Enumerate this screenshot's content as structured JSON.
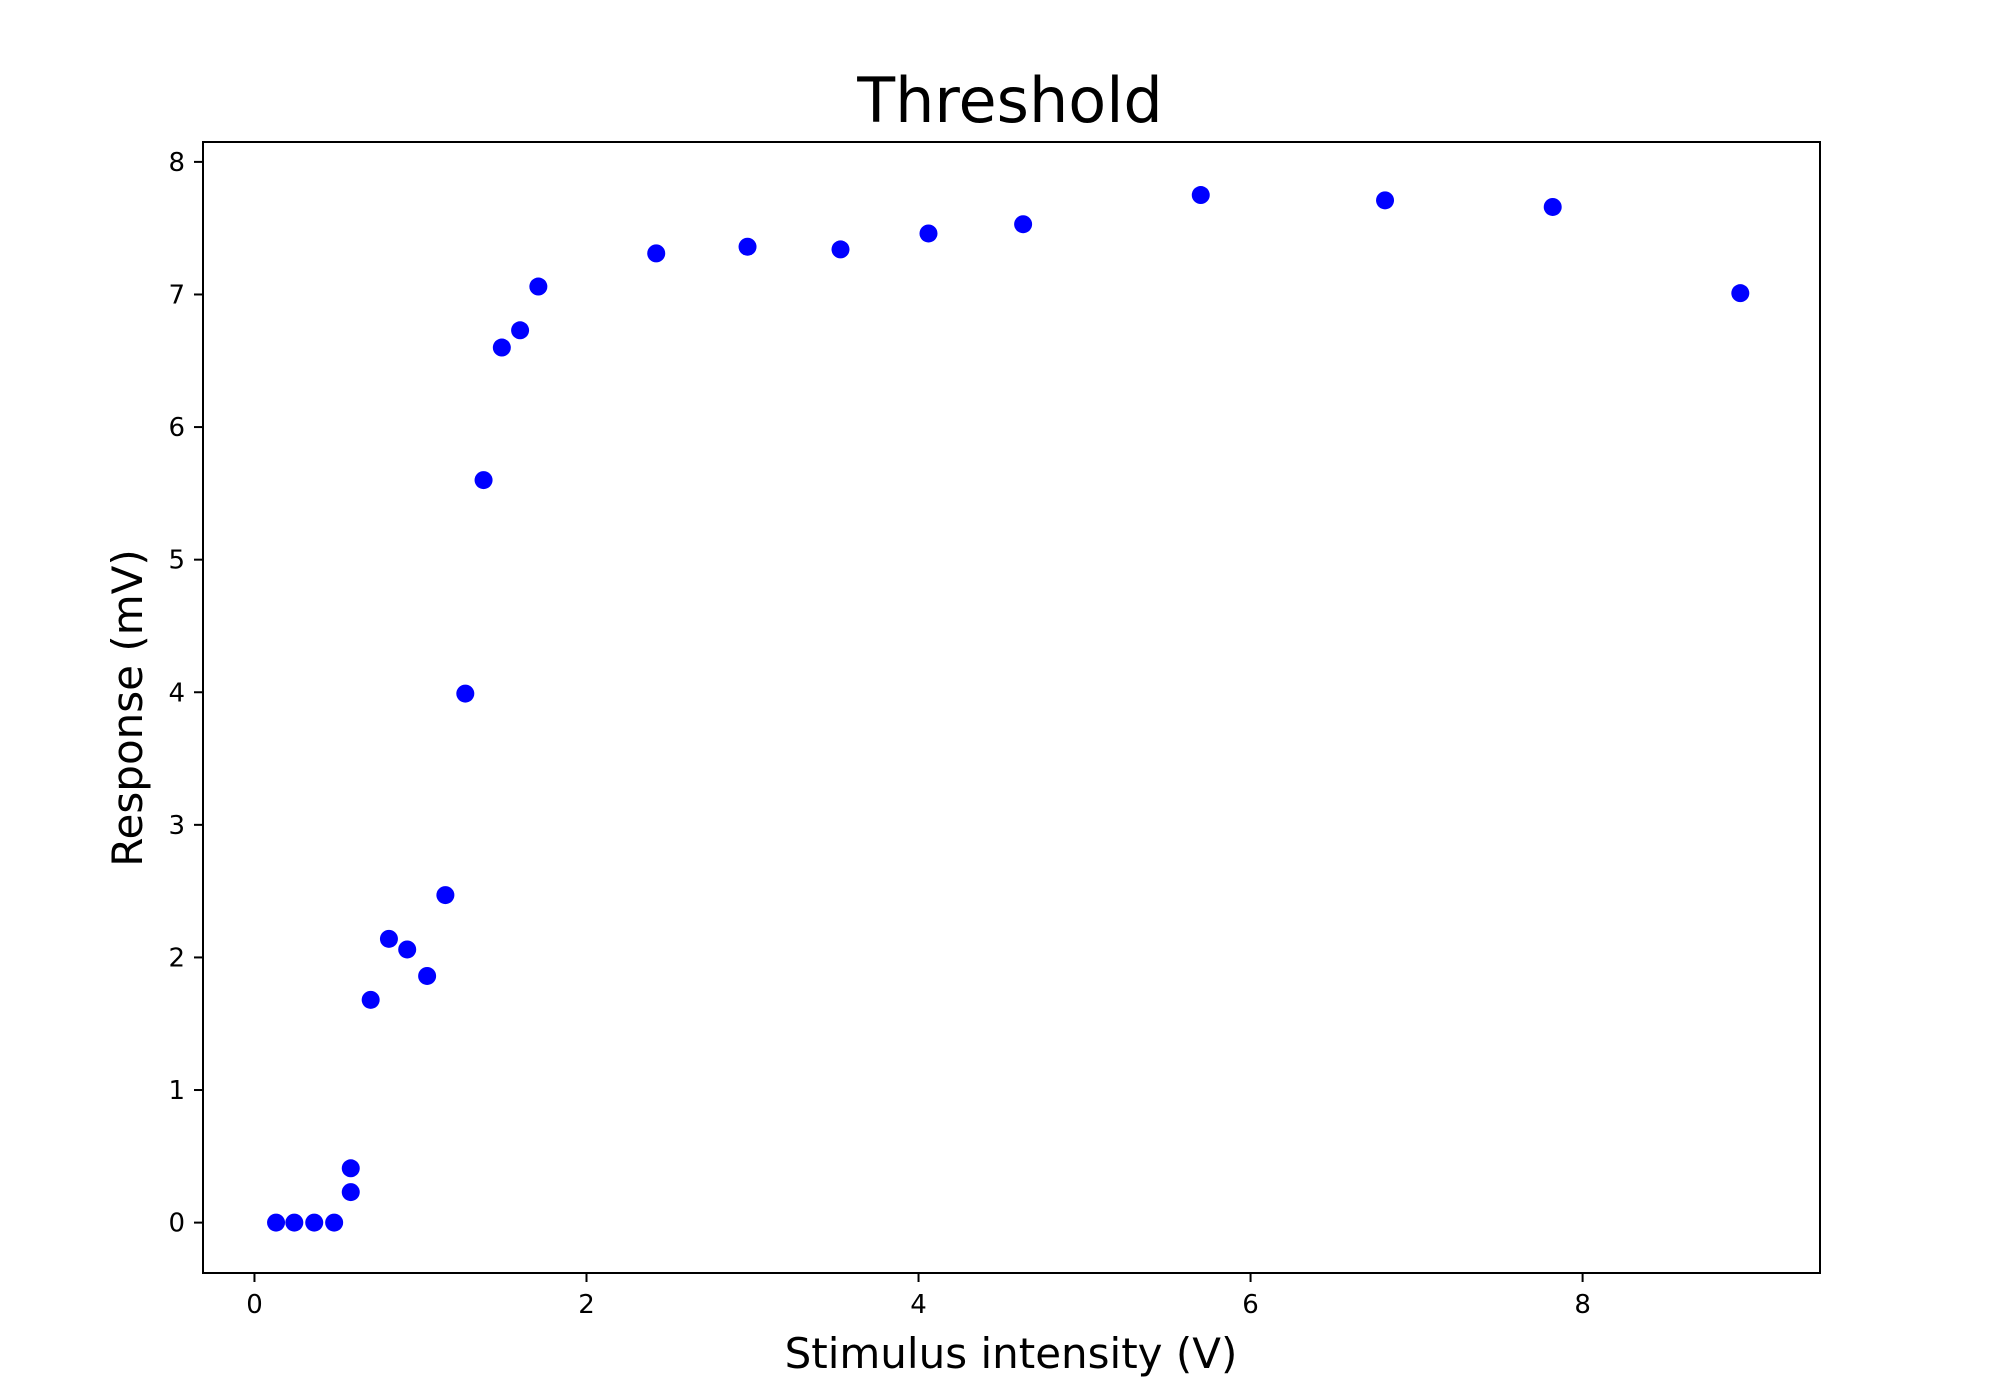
{
  "chart_data": {
    "type": "scatter",
    "title": "Threshold",
    "xlabel": "Stimulus intensity (V)",
    "ylabel": "Response (mV)",
    "xlim": [
      -0.31,
      9.43
    ],
    "ylim": [
      -0.38,
      8.15
    ],
    "xticks": [
      0,
      2,
      4,
      6,
      8
    ],
    "yticks": [
      0,
      1,
      2,
      3,
      4,
      5,
      6,
      7,
      8
    ],
    "grid": false,
    "marker_color": "#0000ff",
    "points": [
      {
        "x": 0.13,
        "y": 0.0
      },
      {
        "x": 0.24,
        "y": 0.0
      },
      {
        "x": 0.36,
        "y": 0.0
      },
      {
        "x": 0.48,
        "y": 0.0
      },
      {
        "x": 0.58,
        "y": 0.23
      },
      {
        "x": 0.58,
        "y": 0.41
      },
      {
        "x": 0.7,
        "y": 1.68
      },
      {
        "x": 0.81,
        "y": 2.14
      },
      {
        "x": 0.92,
        "y": 2.06
      },
      {
        "x": 1.04,
        "y": 1.86
      },
      {
        "x": 1.15,
        "y": 2.47
      },
      {
        "x": 1.27,
        "y": 3.99
      },
      {
        "x": 1.38,
        "y": 5.6
      },
      {
        "x": 1.49,
        "y": 6.6
      },
      {
        "x": 1.6,
        "y": 6.73
      },
      {
        "x": 1.71,
        "y": 7.06
      },
      {
        "x": 2.42,
        "y": 7.31
      },
      {
        "x": 2.97,
        "y": 7.36
      },
      {
        "x": 3.53,
        "y": 7.34
      },
      {
        "x": 4.06,
        "y": 7.46
      },
      {
        "x": 4.63,
        "y": 7.53
      },
      {
        "x": 5.7,
        "y": 7.75
      },
      {
        "x": 6.81,
        "y": 7.71
      },
      {
        "x": 7.82,
        "y": 7.66
      },
      {
        "x": 8.95,
        "y": 7.01
      }
    ]
  }
}
